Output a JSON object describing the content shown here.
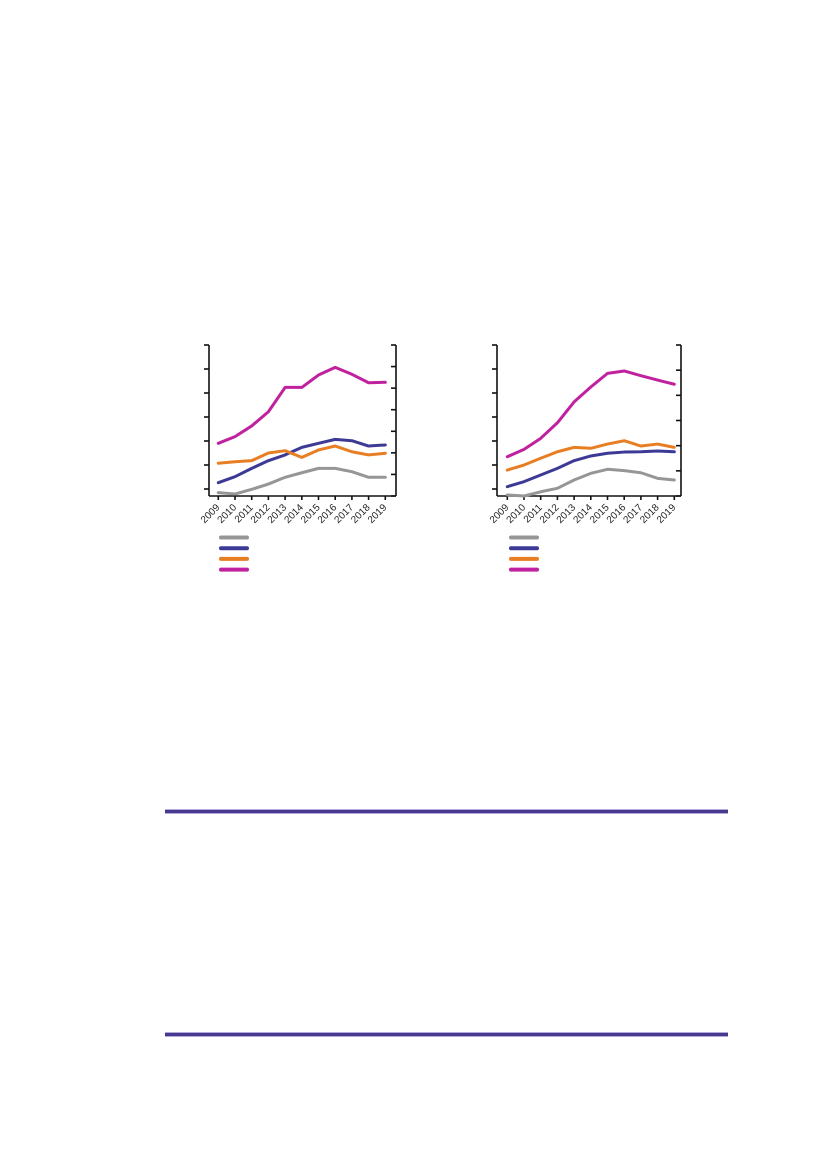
{
  "page": {
    "background": "#ffffff",
    "visible_text_other_than_chart_ticks": ""
  },
  "rules": {
    "count": 2,
    "fill_color": "#46398F",
    "edge_color": "#B4A9D8"
  },
  "chart_data": [
    {
      "type": "line",
      "title": "",
      "xlabel": "",
      "ylabel": "",
      "categories": [
        "2009",
        "2010",
        "2011",
        "2012",
        "2013",
        "2014",
        "2015",
        "2016",
        "2017",
        "2018",
        "2019"
      ],
      "series": [
        {
          "name": "gray-line",
          "color": "#969696",
          "values": [
            2.2,
            1.3,
            4.4,
            7.9,
            12.4,
            15.4,
            18.3,
            18.3,
            16.1,
            12.4,
            12.4
          ]
        },
        {
          "name": "indigo-line",
          "color": "#3D3A96",
          "values": [
            8.8,
            12.8,
            18.3,
            23.4,
            27.2,
            32.2,
            34.9,
            37.5,
            36.6,
            33.1,
            33.8
          ]
        },
        {
          "name": "orange-line",
          "color": "#E87E23",
          "values": [
            21.7,
            22.7,
            23.4,
            28.5,
            30.0,
            25.6,
            30.5,
            33.1,
            29.3,
            27.2,
            28.3
          ]
        },
        {
          "name": "magenta-line",
          "color": "#C0219E",
          "values": [
            34.9,
            39.3,
            46.4,
            55.8,
            71.9,
            71.9,
            80.1,
            85.2,
            80.6,
            75.0,
            75.3
          ]
        }
      ],
      "ylim": [
        0,
        100
      ],
      "y_units_note": "no numeric y tick labels visible; values estimated as percent of plot height",
      "grid": false,
      "legend": {
        "position": "below-left",
        "labels_visible": false,
        "swatch_colors": [
          "#969696",
          "#3D3A96",
          "#E87E23",
          "#C0219E"
        ]
      }
    },
    {
      "type": "line",
      "title": "",
      "xlabel": "",
      "ylabel": "",
      "categories": [
        "2009",
        "2010",
        "2011",
        "2012",
        "2013",
        "2014",
        "2015",
        "2016",
        "2017",
        "2018",
        "2019"
      ],
      "series": [
        {
          "name": "gray-line",
          "color": "#969696",
          "values": [
            0.7,
            0.0,
            2.8,
            5.1,
            10.6,
            15.0,
            17.7,
            16.8,
            15.4,
            11.7,
            10.6
          ]
        },
        {
          "name": "indigo-line",
          "color": "#3D3A96",
          "values": [
            6.2,
            9.5,
            13.9,
            18.3,
            23.4,
            26.5,
            28.3,
            29.1,
            29.3,
            29.8,
            29.3
          ]
        },
        {
          "name": "orange-line",
          "color": "#E87E23",
          "values": [
            17.2,
            20.5,
            25.0,
            29.3,
            32.2,
            31.6,
            34.4,
            36.6,
            33.1,
            34.4,
            32.2
          ]
        },
        {
          "name": "magenta-line",
          "color": "#C0219E",
          "values": [
            26.0,
            30.9,
            38.2,
            48.5,
            62.3,
            72.2,
            81.2,
            82.8,
            79.7,
            76.8,
            74.0
          ]
        }
      ],
      "ylim": [
        0,
        100
      ],
      "y_units_note": "no numeric y tick labels visible; values estimated as percent of plot height",
      "grid": false,
      "legend": {
        "position": "below-left",
        "labels_visible": false,
        "swatch_colors": [
          "#969696",
          "#3D3A96",
          "#E87E23",
          "#C0219E"
        ]
      }
    }
  ]
}
